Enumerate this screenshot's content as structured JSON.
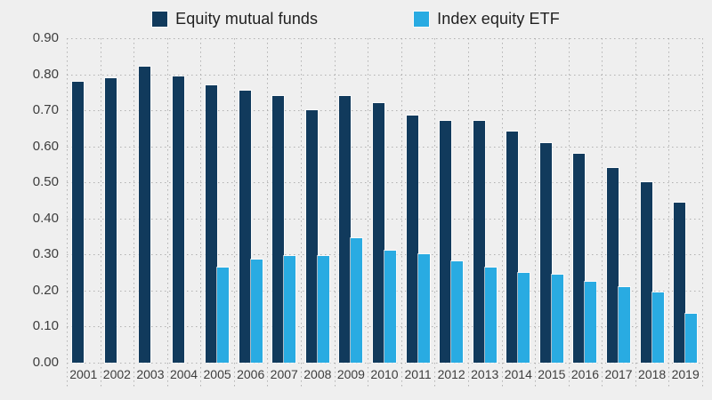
{
  "page": {
    "background_color": "#efefef"
  },
  "chart_data": {
    "type": "bar",
    "title": "",
    "xlabel": "",
    "ylabel": "",
    "categories": [
      "2001",
      "2002",
      "2003",
      "2004",
      "2005",
      "2006",
      "2007",
      "2008",
      "2009",
      "2010",
      "2011",
      "2012",
      "2013",
      "2014",
      "2015",
      "2016",
      "2017",
      "2018",
      "2019"
    ],
    "series": [
      {
        "name": "Equity mutual funds",
        "color": "#113a5c",
        "values": [
          0.78,
          0.79,
          0.82,
          0.795,
          0.77,
          0.755,
          0.74,
          0.7,
          0.74,
          0.72,
          0.685,
          0.67,
          0.67,
          0.64,
          0.61,
          0.58,
          0.54,
          0.5,
          0.445
        ]
      },
      {
        "name": "Index equity ETF",
        "color": "#29abe2",
        "values": [
          null,
          null,
          null,
          null,
          0.265,
          0.285,
          0.295,
          0.295,
          0.345,
          0.31,
          0.3,
          0.28,
          0.265,
          0.25,
          0.245,
          0.225,
          0.21,
          0.195,
          0.135
        ]
      }
    ],
    "ylim": [
      0,
      0.9
    ],
    "ytick_step": 0.1,
    "ytick_labels": [
      "0.90",
      "0.80",
      "0.70",
      "0.60",
      "0.50",
      "0.40",
      "0.30",
      "0.20",
      "0.10",
      "0.00"
    ],
    "grid": "dotted",
    "grid_color": "#b1b1b1",
    "axis_text_color": "#3d3d3d",
    "legend_position": "top-center",
    "legend_text_color": "#1f1f1f"
  }
}
